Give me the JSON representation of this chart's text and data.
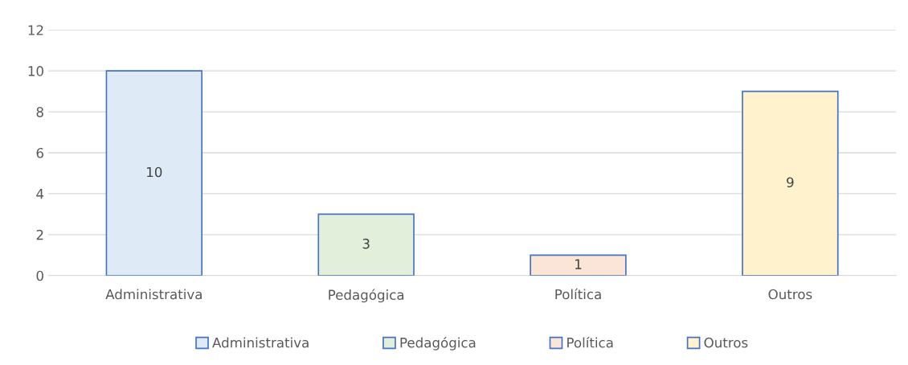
{
  "chart_data": {
    "type": "bar",
    "categories": [
      "Administrativa",
      "Pedagógica",
      "Política",
      "Outros"
    ],
    "series": [
      {
        "name": "Administrativa",
        "color": "#deebf7",
        "values": [
          10,
          null,
          null,
          null
        ]
      },
      {
        "name": "Pedagógica",
        "color": "#e2efda",
        "values": [
          null,
          3,
          null,
          null
        ]
      },
      {
        "name": "Política",
        "color": "#fbe5d6",
        "values": [
          null,
          null,
          1,
          null
        ]
      },
      {
        "name": "Outros",
        "color": "#fff2cc",
        "values": [
          null,
          null,
          null,
          9
        ]
      }
    ],
    "ylim": [
      0,
      12
    ],
    "yticks": [
      0,
      2,
      4,
      6,
      8,
      10,
      12
    ],
    "grid": "y",
    "data_labels": true,
    "legend": "bottom"
  }
}
